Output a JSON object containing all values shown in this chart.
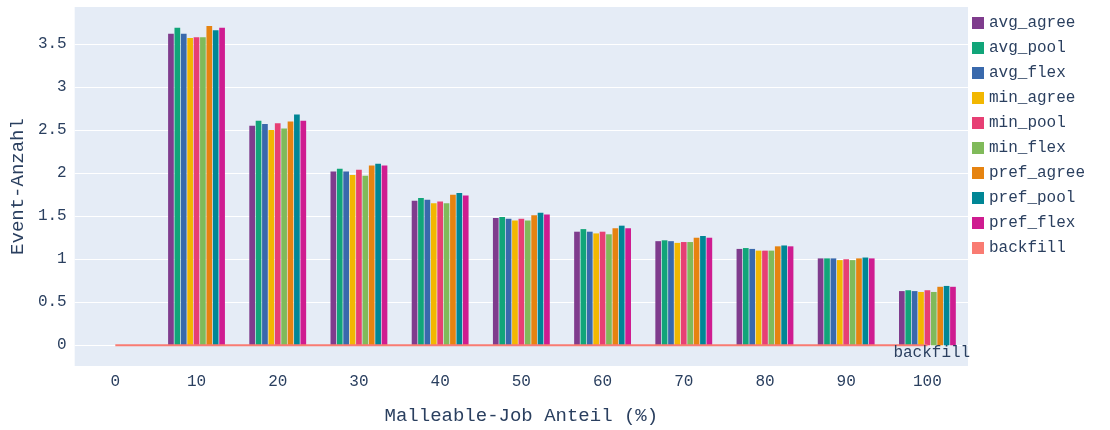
{
  "chart_data": {
    "type": "bar",
    "xlabel": "Malleable-Job Anteil (%)",
    "ylabel": "Event-Anzahl",
    "categories": [
      "0",
      "10",
      "20",
      "30",
      "40",
      "50",
      "60",
      "70",
      "80",
      "90",
      "100"
    ],
    "ylim": [
      -0.24,
      3.93
    ],
    "yticks": [
      0,
      0.5,
      1,
      1.5,
      2,
      2.5,
      3,
      3.5
    ],
    "grid": "y",
    "legend": "top right",
    "series": [
      {
        "name": "avg_agree",
        "color": "#7f3c8d",
        "values": [
          null,
          3.62,
          2.55,
          2.02,
          1.68,
          1.48,
          1.32,
          1.21,
          1.12,
          1.01,
          0.63
        ]
      },
      {
        "name": "avg_pool",
        "color": "#11a579",
        "values": [
          null,
          3.69,
          2.61,
          2.05,
          1.71,
          1.49,
          1.35,
          1.22,
          1.13,
          1.01,
          0.64
        ]
      },
      {
        "name": "avg_flex",
        "color": "#3969ac",
        "values": [
          null,
          3.62,
          2.57,
          2.02,
          1.69,
          1.47,
          1.32,
          1.21,
          1.12,
          1.01,
          0.63
        ]
      },
      {
        "name": "min_agree",
        "color": "#f2b701",
        "values": [
          null,
          3.57,
          2.5,
          1.98,
          1.65,
          1.45,
          1.3,
          1.19,
          1.1,
          0.99,
          0.62
        ]
      },
      {
        "name": "min_pool",
        "color": "#e73f74",
        "values": [
          null,
          3.58,
          2.58,
          2.04,
          1.67,
          1.47,
          1.32,
          1.2,
          1.1,
          1.0,
          0.64
        ]
      },
      {
        "name": "min_flex",
        "color": "#80ba5a",
        "values": [
          null,
          3.58,
          2.52,
          1.97,
          1.65,
          1.45,
          1.29,
          1.2,
          1.1,
          0.99,
          0.62
        ]
      },
      {
        "name": "pref_agree",
        "color": "#e68310",
        "values": [
          null,
          3.71,
          2.6,
          2.09,
          1.75,
          1.51,
          1.36,
          1.25,
          1.15,
          1.01,
          0.68
        ]
      },
      {
        "name": "pref_pool",
        "color": "#008695",
        "values": [
          null,
          3.66,
          2.68,
          2.11,
          1.77,
          1.54,
          1.39,
          1.27,
          1.16,
          1.02,
          0.69
        ]
      },
      {
        "name": "pref_flex",
        "color": "#cf1c90",
        "values": [
          null,
          3.69,
          2.61,
          2.09,
          1.74,
          1.52,
          1.36,
          1.25,
          1.15,
          1.01,
          0.68
        ]
      },
      {
        "name": "backfill",
        "type": "line",
        "color": "#f97b72",
        "values": [
          0,
          0,
          0,
          0,
          0,
          0,
          0,
          0,
          0,
          0,
          0
        ]
      }
    ]
  }
}
